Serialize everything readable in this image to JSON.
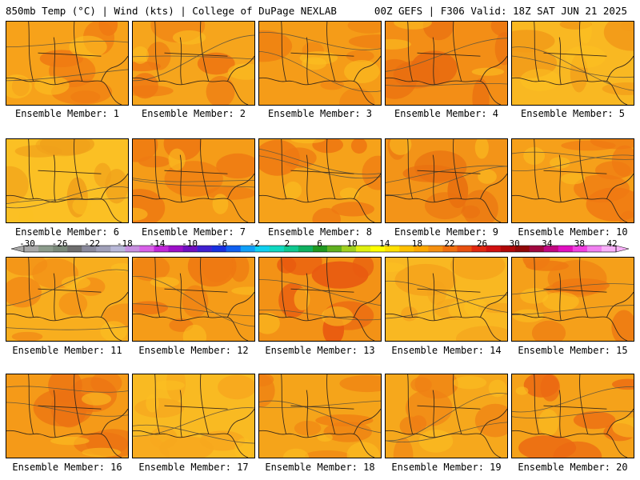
{
  "header": {
    "left": "850mb Temp (°C) | Wind (kts) | College of DuPage NEXLAB",
    "right": "00Z GEFS | F306 Valid: 18Z SAT JUN 21 2025"
  },
  "colorbar": {
    "ticks": [
      "-30",
      "-26",
      "-22",
      "-18",
      "-14",
      "-10",
      "-6",
      "-2",
      "2",
      "6",
      "10",
      "14",
      "18",
      "22",
      "26",
      "30",
      "34",
      "38",
      "42"
    ],
    "colors": [
      "#a8a8a8",
      "#8c9c8c",
      "#7a8a7a",
      "#6e6e6e",
      "#8a8a9c",
      "#a0a0b8",
      "#b8b8d8",
      "#c890e0",
      "#d860e8",
      "#c028d8",
      "#9c10c8",
      "#7010c0",
      "#4020d0",
      "#1830e0",
      "#1060f0",
      "#10a0f8",
      "#10d0f0",
      "#10d8c0",
      "#10c890",
      "#10b060",
      "#209820",
      "#60b020",
      "#a0d020",
      "#e0f010",
      "#ffff00",
      "#ffe000",
      "#ffc000",
      "#ffa800",
      "#f59010",
      "#f07010",
      "#e85010",
      "#e02810",
      "#d01010",
      "#b00808",
      "#900808",
      "#a00840",
      "#c00880",
      "#e010c0",
      "#f040e0",
      "#f080f0",
      "#f8b0f8"
    ]
  },
  "panels": [
    {
      "label": "Ensemble Member: 1",
      "base": "#f7a21a",
      "accent": "#ef7a12"
    },
    {
      "label": "Ensemble Member: 2",
      "base": "#f6a51c",
      "accent": "#ee7812"
    },
    {
      "label": "Ensemble Member: 3",
      "base": "#f59c18",
      "accent": "#ef8212"
    },
    {
      "label": "Ensemble Member: 4",
      "base": "#f38e16",
      "accent": "#e96d10"
    },
    {
      "label": "Ensemble Member: 5",
      "base": "#f9b822",
      "accent": "#f29a18"
    },
    {
      "label": "Ensemble Member: 6",
      "base": "#fbc024",
      "accent": "#f0a01a"
    },
    {
      "label": "Ensemble Member: 7",
      "base": "#f59c18",
      "accent": "#ee7a12"
    },
    {
      "label": "Ensemble Member: 8",
      "base": "#f6a21a",
      "accent": "#ee7812"
    },
    {
      "label": "Ensemble Member: 9",
      "base": "#f39418",
      "accent": "#e97010"
    },
    {
      "label": "Ensemble Member: 10",
      "base": "#f6a01a",
      "accent": "#ef7812"
    },
    {
      "label": "Ensemble Member: 11",
      "base": "#f8ae1e",
      "accent": "#f28c16"
    },
    {
      "label": "Ensemble Member: 12",
      "base": "#f59c18",
      "accent": "#ee7812"
    },
    {
      "label": "Ensemble Member: 13",
      "base": "#f39216",
      "accent": "#e85a10"
    },
    {
      "label": "Ensemble Member: 14",
      "base": "#f9b822",
      "accent": "#f5a41c"
    },
    {
      "label": "Ensemble Member: 15",
      "base": "#f5a01a",
      "accent": "#ee7a12"
    },
    {
      "label": "Ensemble Member: 16",
      "base": "#f59a18",
      "accent": "#ec7212"
    },
    {
      "label": "Ensemble Member: 17",
      "base": "#f9ba22",
      "accent": "#f7a81e"
    },
    {
      "label": "Ensemble Member: 18",
      "base": "#f5a41a",
      "accent": "#ef7e12"
    },
    {
      "label": "Ensemble Member: 19",
      "base": "#f6a81c",
      "accent": "#ef8014"
    },
    {
      "label": "Ensemble Member: 20",
      "base": "#f5a21a",
      "accent": "#ec6812"
    }
  ]
}
